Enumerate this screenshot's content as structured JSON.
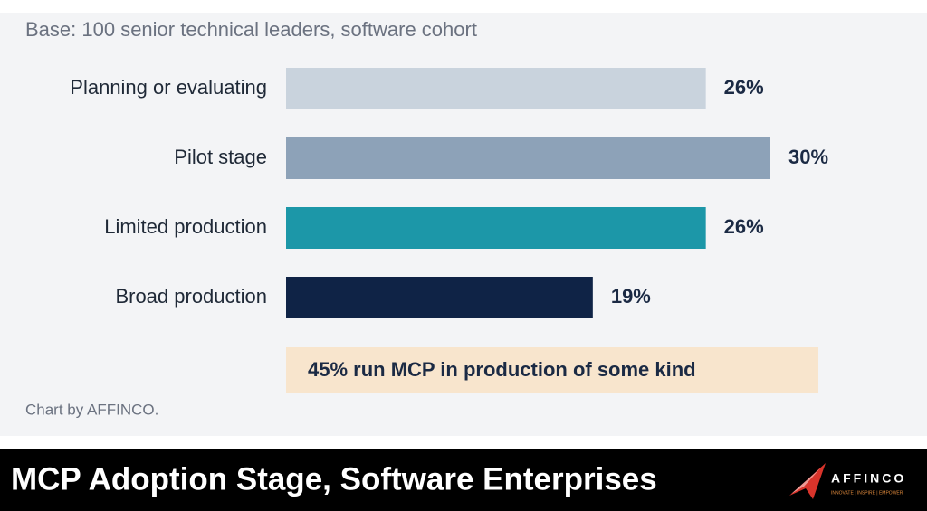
{
  "chart_data": {
    "type": "bar",
    "orientation": "horizontal",
    "subtitle": "Base: 100 senior technical leaders, software cohort",
    "categories": [
      "Planning or evaluating",
      "Pilot stage",
      "Limited production",
      "Broad production"
    ],
    "values": [
      26,
      30,
      26,
      19
    ],
    "value_labels": [
      "26%",
      "30%",
      "26%",
      "19%"
    ],
    "colors": [
      "#c9d3dd",
      "#8da2b8",
      "#1c97a8",
      "#0f2346"
    ],
    "annotation": "45% run MCP in production of some kind",
    "source": "Chart by AFFINCO."
  },
  "banner": {
    "title": "MCP Adoption Stage, Software Enterprises",
    "brand": "AFFINCO",
    "tagline": "INNOVATE | INSPIRE | EMPOWER"
  }
}
